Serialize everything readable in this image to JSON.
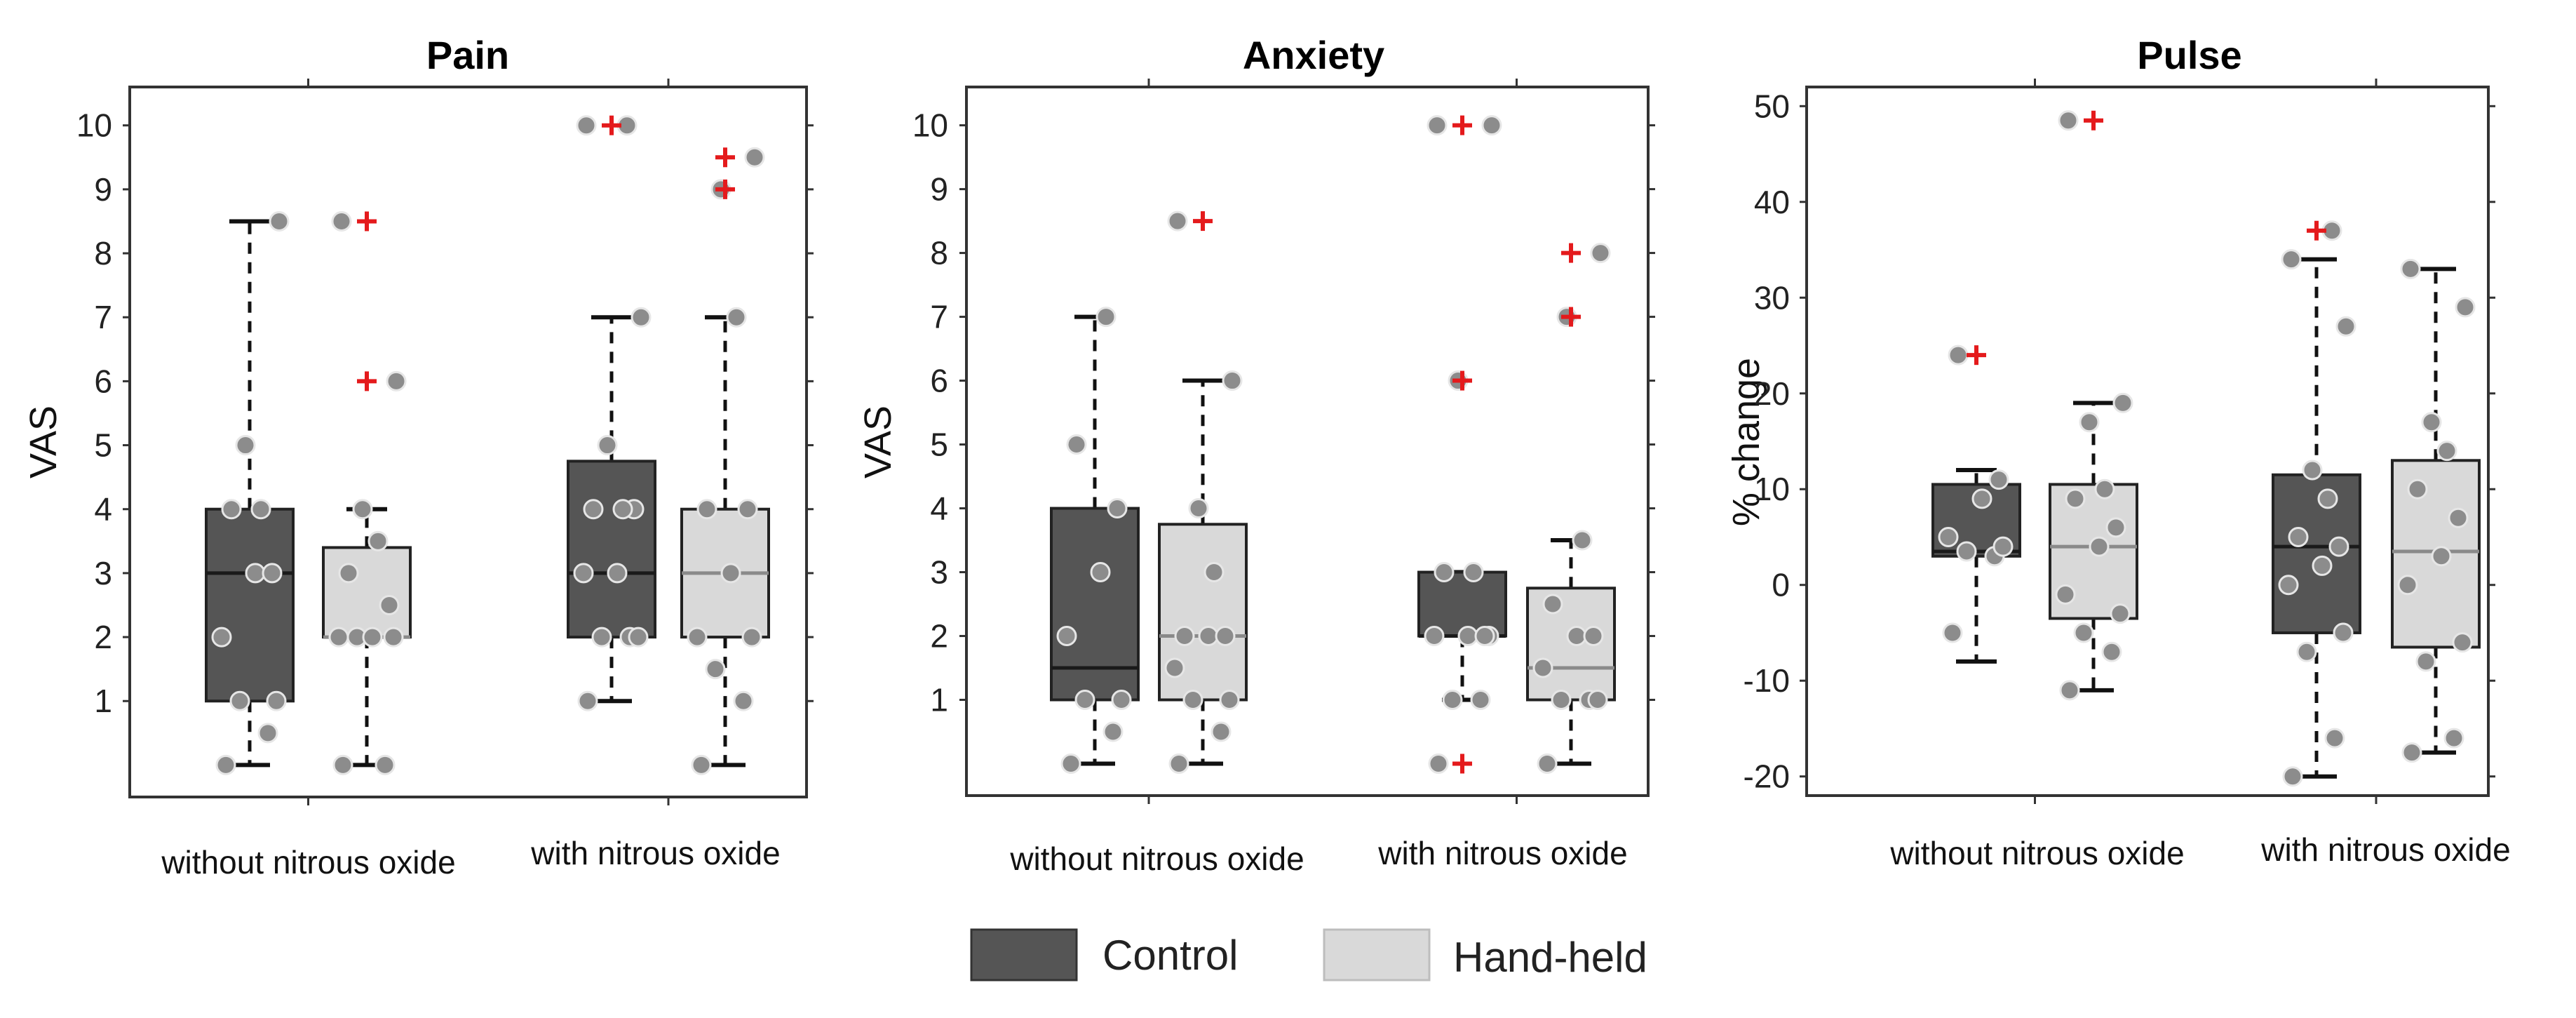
{
  "colors": {
    "control_fill": "#555555",
    "handheld_fill": "#d9d9d9",
    "box_stroke": "#222222",
    "median_control": "#1a1a1a",
    "median_handheld": "#8a8a8a",
    "point_fill": "#8c8c8c",
    "point_stroke": "#e6e6e6",
    "outlier": "#e41a1c",
    "frame": "#333333"
  },
  "legend": {
    "control_label": "Control",
    "handheld_label": "Hand-held"
  },
  "chart_data": [
    {
      "type": "box",
      "title": "Pain",
      "ylabel": "VAS",
      "xlabel": "",
      "ylim": [
        -0.5,
        10.6
      ],
      "yticks": [
        1,
        2,
        3,
        4,
        5,
        6,
        7,
        8,
        9,
        10
      ],
      "categories": [
        "without nitrous oxide",
        "with nitrous oxide"
      ],
      "series": [
        {
          "name": "Control",
          "boxes": [
            {
              "whisker_low": 0,
              "q1": 1,
              "median": 3,
              "q3": 4,
              "whisker_high": 8.5,
              "outliers": [],
              "points": [
                0,
                0.5,
                1,
                1,
                2,
                3,
                3,
                4,
                4,
                5,
                8.5
              ]
            },
            {
              "whisker_low": 1,
              "q1": 2,
              "median": 3,
              "q3": 4.75,
              "whisker_high": 7,
              "outliers": [
                10
              ],
              "points": [
                1,
                2,
                2,
                2,
                3,
                3,
                4,
                4,
                4,
                5,
                7,
                10,
                10
              ]
            }
          ]
        },
        {
          "name": "Hand-held",
          "boxes": [
            {
              "whisker_low": 0,
              "q1": 2,
              "median": 2,
              "q3": 3.4,
              "whisker_high": 4,
              "outliers": [
                6,
                8.5
              ],
              "points": [
                0,
                0,
                2,
                2,
                2,
                2,
                2.5,
                3,
                3.5,
                4,
                6,
                8.5
              ]
            },
            {
              "whisker_low": 0,
              "q1": 2,
              "median": 3,
              "q3": 4,
              "whisker_high": 7,
              "outliers": [
                9,
                9.5
              ],
              "points": [
                0,
                1,
                1.5,
                2,
                2,
                3,
                4,
                4,
                7,
                9,
                9.5
              ]
            }
          ]
        }
      ]
    },
    {
      "type": "box",
      "title": "Anxiety",
      "ylabel": "VAS",
      "xlabel": "",
      "ylim": [
        -0.5,
        10.6
      ],
      "yticks": [
        1,
        2,
        3,
        4,
        5,
        6,
        7,
        8,
        9,
        10
      ],
      "categories": [
        "without nitrous oxide",
        "with nitrous oxide"
      ],
      "series": [
        {
          "name": "Control",
          "boxes": [
            {
              "whisker_low": 0,
              "q1": 1,
              "median": 1.5,
              "q3": 4,
              "whisker_high": 7,
              "outliers": [],
              "points": [
                0,
                0.5,
                1,
                1,
                2,
                3,
                4,
                5,
                7
              ]
            },
            {
              "whisker_low": 1,
              "q1": 2,
              "median": 2,
              "q3": 3,
              "whisker_high": 3,
              "outliers": [
                0,
                6,
                10
              ],
              "points": [
                0,
                1,
                1,
                2,
                2,
                2,
                2,
                3,
                3,
                6,
                10,
                10
              ]
            }
          ]
        },
        {
          "name": "Hand-held",
          "boxes": [
            {
              "whisker_low": 0,
              "q1": 1,
              "median": 2,
              "q3": 3.75,
              "whisker_high": 6,
              "outliers": [
                8.5
              ],
              "points": [
                0,
                0.5,
                1,
                1,
                1.5,
                2,
                2,
                2,
                3,
                4,
                6,
                8.5
              ]
            },
            {
              "whisker_low": 0,
              "q1": 1,
              "median": 1.5,
              "q3": 2.75,
              "whisker_high": 3.5,
              "outliers": [
                7,
                8
              ],
              "points": [
                0,
                1,
                1,
                1,
                1.5,
                2,
                2,
                2.5,
                3.5,
                7,
                8
              ]
            }
          ]
        }
      ]
    },
    {
      "type": "box",
      "title": "Pulse",
      "ylabel": "% change",
      "xlabel": "",
      "ylim": [
        -22,
        52
      ],
      "yticks": [
        -20,
        -10,
        0,
        10,
        20,
        30,
        40,
        50
      ],
      "categories": [
        "without nitrous oxide",
        "with nitrous oxide"
      ],
      "series": [
        {
          "name": "Control",
          "boxes": [
            {
              "whisker_low": -8,
              "q1": 3,
              "median": 3.5,
              "q3": 10.5,
              "whisker_high": 12,
              "outliers": [
                24
              ],
              "points": [
                -5,
                3,
                3.5,
                4,
                5,
                9,
                11,
                24
              ]
            },
            {
              "whisker_low": -20,
              "q1": -5,
              "median": 4,
              "q3": 11.5,
              "whisker_high": 34,
              "outliers": [
                37
              ],
              "points": [
                -20,
                -16,
                -7,
                -5,
                0,
                2,
                4,
                5,
                9,
                12,
                27,
                34,
                37
              ]
            }
          ]
        },
        {
          "name": "Hand-held",
          "boxes": [
            {
              "whisker_low": -11,
              "q1": -3.5,
              "median": 4,
              "q3": 10.5,
              "whisker_high": 19,
              "outliers": [
                48.5
              ],
              "points": [
                -11,
                -7,
                -5,
                -3,
                -1,
                4,
                6,
                9,
                10,
                17,
                19,
                48.5
              ]
            },
            {
              "whisker_low": -17.5,
              "q1": -6.5,
              "median": 3.5,
              "q3": 13,
              "whisker_high": 33,
              "outliers": [],
              "points": [
                -17.5,
                -16,
                -8,
                -6,
                0,
                3,
                7,
                10,
                14,
                17,
                29,
                33
              ]
            }
          ]
        }
      ]
    }
  ]
}
